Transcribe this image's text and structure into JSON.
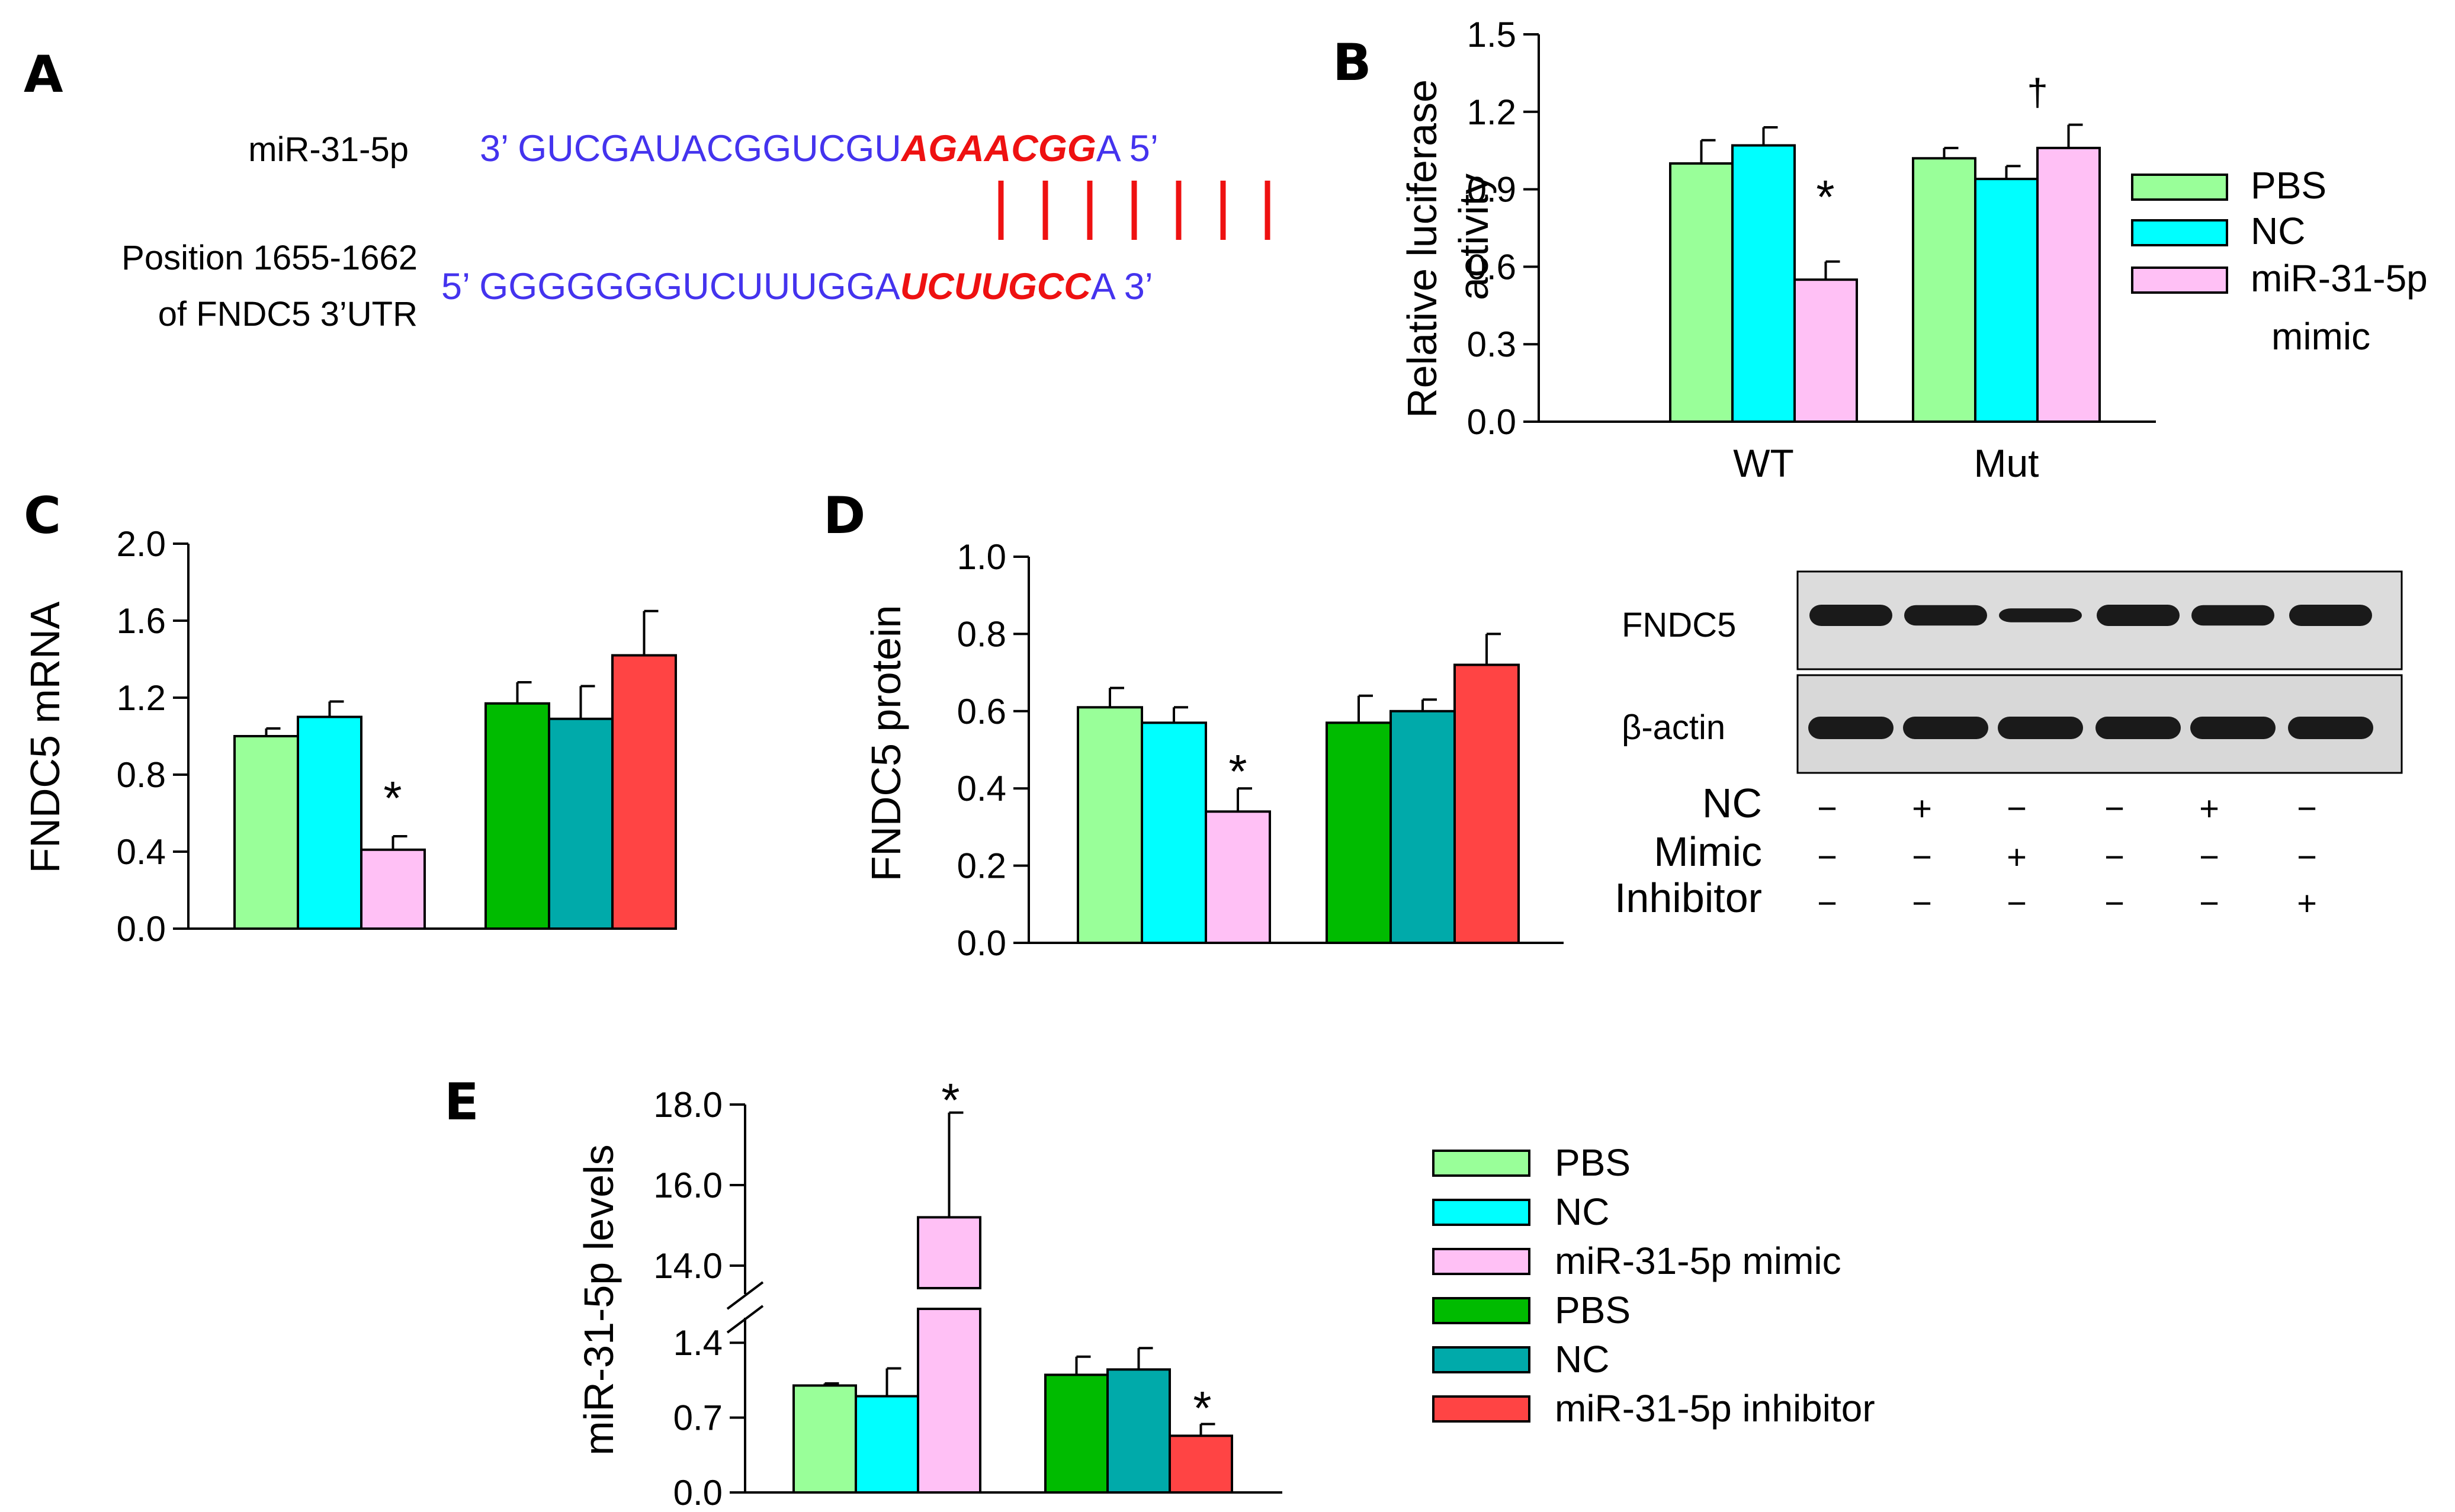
{
  "panel_labels": [
    "A",
    "B",
    "C",
    "D",
    "E"
  ],
  "colors": {
    "pbs_light": "#99ff99",
    "nc_cyan": "#00ffff",
    "mimic_pink": "#ffc0f5",
    "pbs_dark": "#00bb00",
    "nc_teal": "#00aaaa",
    "inhibitor_red": "#ff4444",
    "seq_blue": "#4433ee",
    "seq_red": "#ee1111"
  },
  "panel_a": {
    "mir_label": "miR-31-5p",
    "mir_prefix": "3’ GUCGAUACGGUCGU",
    "mir_seed": "AGAACGG",
    "mir_suffix": "A 5’",
    "target_label_line1": "Position 1655-1662",
    "target_label_line2": "of FNDC5 3’UTR",
    "target_prefix": "5’ GGGGGGGUCUUUGGA",
    "target_seed": "UCUUGCC",
    "target_suffix": "A 3’"
  },
  "panel_d_blot": {
    "bands": [
      "FNDC5",
      "β-actin"
    ],
    "rows": [
      {
        "label": "NC",
        "signs": [
          "−",
          "+",
          "−",
          "−",
          "+",
          "−"
        ]
      },
      {
        "label": "Mimic",
        "signs": [
          "−",
          "−",
          "+",
          "−",
          "−",
          "−"
        ]
      },
      {
        "label": "Inhibitor",
        "signs": [
          "−",
          "−",
          "−",
          "−",
          "−",
          "+"
        ]
      }
    ]
  },
  "legend_b": [
    "PBS",
    "NC",
    "miR-31-5p",
    "mimic"
  ],
  "legend_e": [
    "PBS",
    "NC",
    "miR-31-5p mimic",
    "PBS",
    "NC",
    "miR-31-5p inhibitor"
  ],
  "chart_data": [
    {
      "panel": "B",
      "type": "bar",
      "categories": [
        "WT",
        "Mut"
      ],
      "ylabel_line1": "Relative luciferase",
      "ylabel_line2": "activity",
      "ylim": [
        0,
        1.5
      ],
      "yticks": [
        "0.0",
        "0.3",
        "0.6",
        "0.9",
        "1.2",
        "1.5"
      ],
      "series": [
        {
          "name": "PBS",
          "values": [
            1.0,
            1.02
          ],
          "errors": [
            0.09,
            0.04
          ]
        },
        {
          "name": "NC",
          "values": [
            1.07,
            0.94
          ],
          "errors": [
            0.07,
            0.05
          ]
        },
        {
          "name": "miR-31-5p mimic",
          "values": [
            0.55,
            1.06
          ],
          "errors": [
            0.07,
            0.09
          ]
        }
      ],
      "annotations": [
        "*",
        "†"
      ]
    },
    {
      "panel": "C",
      "type": "bar",
      "ylabel": "FNDC5 mRNA",
      "ylim": [
        0,
        2.0
      ],
      "yticks": [
        "0.0",
        "0.4",
        "0.8",
        "1.2",
        "1.6",
        "2.0"
      ],
      "values": [
        1.0,
        1.1,
        0.41,
        1.17,
        1.09,
        1.42
      ],
      "errors": [
        0.04,
        0.08,
        0.07,
        0.11,
        0.17,
        0.23
      ],
      "annotations": [
        "*"
      ]
    },
    {
      "panel": "D",
      "type": "bar",
      "ylabel": "FNDC5 protein",
      "ylim": [
        0,
        1.0
      ],
      "yticks": [
        "0.0",
        "0.2",
        "0.4",
        "0.6",
        "0.8",
        "1.0"
      ],
      "values": [
        0.61,
        0.57,
        0.34,
        0.57,
        0.6,
        0.72
      ],
      "errors": [
        0.05,
        0.04,
        0.06,
        0.07,
        0.03,
        0.08
      ],
      "annotations": [
        "*"
      ]
    },
    {
      "panel": "E",
      "type": "bar",
      "ylabel": "miR-31-5p levels",
      "axis_break": true,
      "lower_range": [
        0,
        1.8
      ],
      "upper_range": [
        13.0,
        18.0
      ],
      "yticks_lower": [
        "0.0",
        "0.7",
        "1.4"
      ],
      "yticks_upper": [
        "14.0",
        "16.0",
        "18.0"
      ],
      "values": [
        1.0,
        0.9,
        15.2,
        1.1,
        1.15,
        0.53
      ],
      "errors": [
        0.02,
        0.26,
        2.6,
        0.17,
        0.2,
        0.11
      ],
      "annotations": [
        "*",
        "*"
      ]
    }
  ]
}
